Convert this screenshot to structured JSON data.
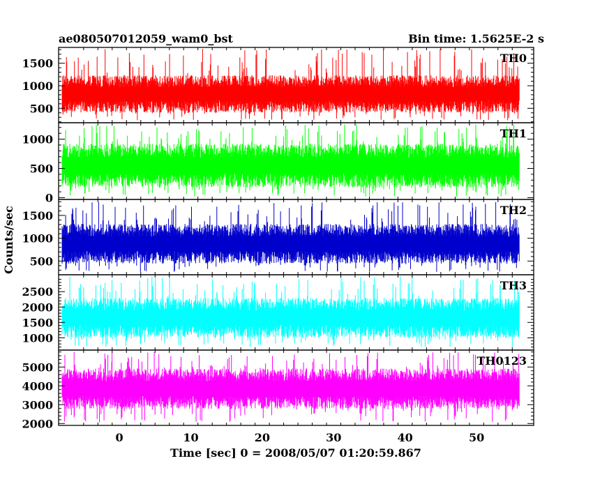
{
  "chart_data": {
    "type": "line",
    "title": "ae080507012059_wam0_bst",
    "subtitle": "Bin time: 1.5625E-2 s",
    "xlabel": "Time [sec] 0 = 2008/05/07 01:20:59.867",
    "ylabel": "Counts/sec",
    "xlim": [
      -8.5,
      58
    ],
    "x_range_data": [
      -8.0,
      56.0
    ],
    "x_ticks": [
      "0",
      "10",
      "20",
      "30",
      "40",
      "50"
    ],
    "x_tick_values": [
      0,
      10,
      20,
      30,
      40,
      50
    ],
    "grid": false,
    "legend": "none",
    "panels": [
      {
        "name": "TH0",
        "color": "#ff0000",
        "ylim": [
          180,
          1850
        ],
        "ticks": [
          "500",
          "1000",
          "1500"
        ],
        "tick_values": [
          500,
          1000,
          1500
        ],
        "mean": 820,
        "typical_low": 450,
        "typical_high": 1280,
        "min": 230,
        "max": 1820
      },
      {
        "name": "TH1",
        "color": "#00ff00",
        "ylim": [
          -30,
          1280
        ],
        "ticks": [
          "0",
          "500",
          "1000"
        ],
        "tick_values": [
          0,
          500,
          1000
        ],
        "mean": 550,
        "typical_low": 200,
        "typical_high": 950,
        "min": 20,
        "max": 1250
      },
      {
        "name": "TH2",
        "color": "#0000cc",
        "ylim": [
          200,
          1850
        ],
        "ticks": [
          "500",
          "1000",
          "1500"
        ],
        "tick_values": [
          500,
          1000,
          1500
        ],
        "mean": 880,
        "typical_low": 480,
        "typical_high": 1350,
        "min": 250,
        "max": 1800
      },
      {
        "name": "TH3",
        "color": "#00ffff",
        "ylim": [
          600,
          3050
        ],
        "ticks": [
          "1000",
          "1500",
          "2000",
          "2500"
        ],
        "tick_values": [
          1000,
          1500,
          2000,
          2500
        ],
        "mean": 1650,
        "typical_low": 1050,
        "typical_high": 2350,
        "min": 700,
        "max": 3000
      },
      {
        "name": "TH0123",
        "color": "#ff00ff",
        "ylim": [
          1900,
          5900
        ],
        "ticks": [
          "2000",
          "3000",
          "4000",
          "5000"
        ],
        "tick_values": [
          2000,
          3000,
          4000,
          5000
        ],
        "mean": 3850,
        "typical_low": 2750,
        "typical_high": 4900,
        "min": 2050,
        "max": 5800
      }
    ]
  }
}
